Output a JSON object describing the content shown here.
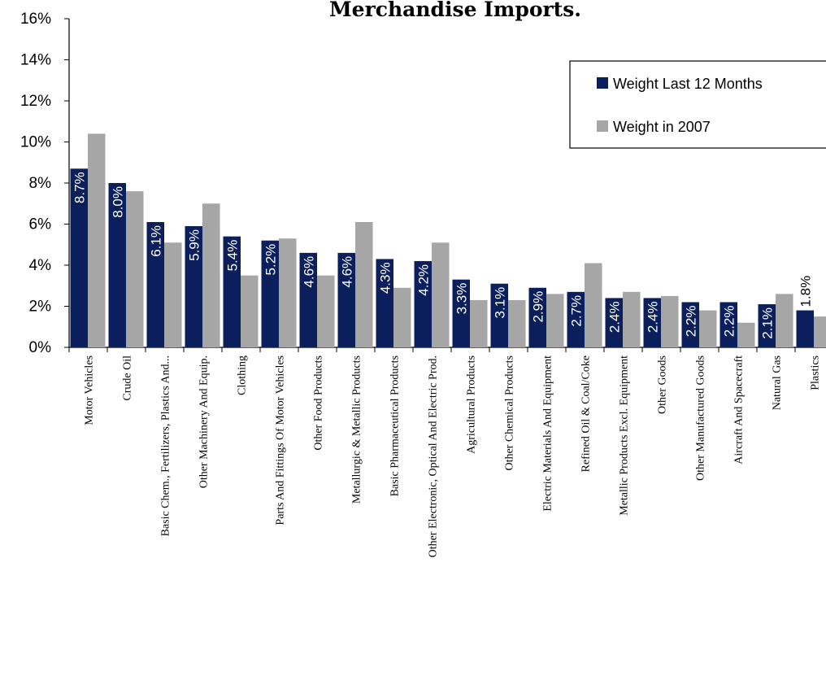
{
  "chart_data": {
    "type": "bar",
    "title": "Merchandise Imports.",
    "xlabel": "",
    "ylabel": "",
    "ylim": [
      0,
      0.16
    ],
    "y_ticks": [
      "0%",
      "2%",
      "4%",
      "6%",
      "8%",
      "10%",
      "12%",
      "14%",
      "16%"
    ],
    "grid": false,
    "legend_position": "top-right",
    "colors": {
      "series_1": "#0b1f5c",
      "series_2": "#a6a6a6"
    },
    "categories": [
      "Motor Vehicles",
      "Crude Oil",
      "Basic Chem., Fertilizers, Plastics And...",
      "Other Machinery And Equip.",
      "Clothing",
      "Parts And Fittings Of Motor Vehicles",
      "Other Food Products",
      "Metallurgic & Metallic Products",
      "Basic Pharmaceutical Products",
      "Other Electronic, Optical And Electric Prod.",
      "Agricultural Products",
      "Other Chemical Products",
      "Electric Materials And Equipment",
      "Refined Oil & Coal/Coke",
      "Metallic Products Excl. Equipment",
      "Other Goods",
      "Other Manufactured Goods",
      "Aircraft And Spacecraft",
      "Natural Gas",
      "Plastics"
    ],
    "series": [
      {
        "name": "Weight Last 12 Months",
        "values": [
          0.087,
          0.08,
          0.061,
          0.059,
          0.054,
          0.052,
          0.046,
          0.046,
          0.043,
          0.042,
          0.033,
          0.031,
          0.029,
          0.027,
          0.024,
          0.024,
          0.022,
          0.022,
          0.021,
          0.018
        ],
        "labels": [
          "8.7%",
          "8.0%",
          "6.1%",
          "5.9%",
          "5.4%",
          "5.2%",
          "4.6%",
          "4.6%",
          "4.3%",
          "4.2%",
          "3.3%",
          "3.1%",
          "2.9%",
          "2.7%",
          "2.4%",
          "2.4%",
          "2.2%",
          "2.2%",
          "2.1%",
          "1.8%"
        ]
      },
      {
        "name": "Weight in 2007",
        "values": [
          0.104,
          0.076,
          0.051,
          0.07,
          0.035,
          0.053,
          0.035,
          0.061,
          0.029,
          0.051,
          0.023,
          0.023,
          0.026,
          0.041,
          0.027,
          0.025,
          0.018,
          0.012,
          0.026,
          0.015
        ]
      }
    ]
  }
}
